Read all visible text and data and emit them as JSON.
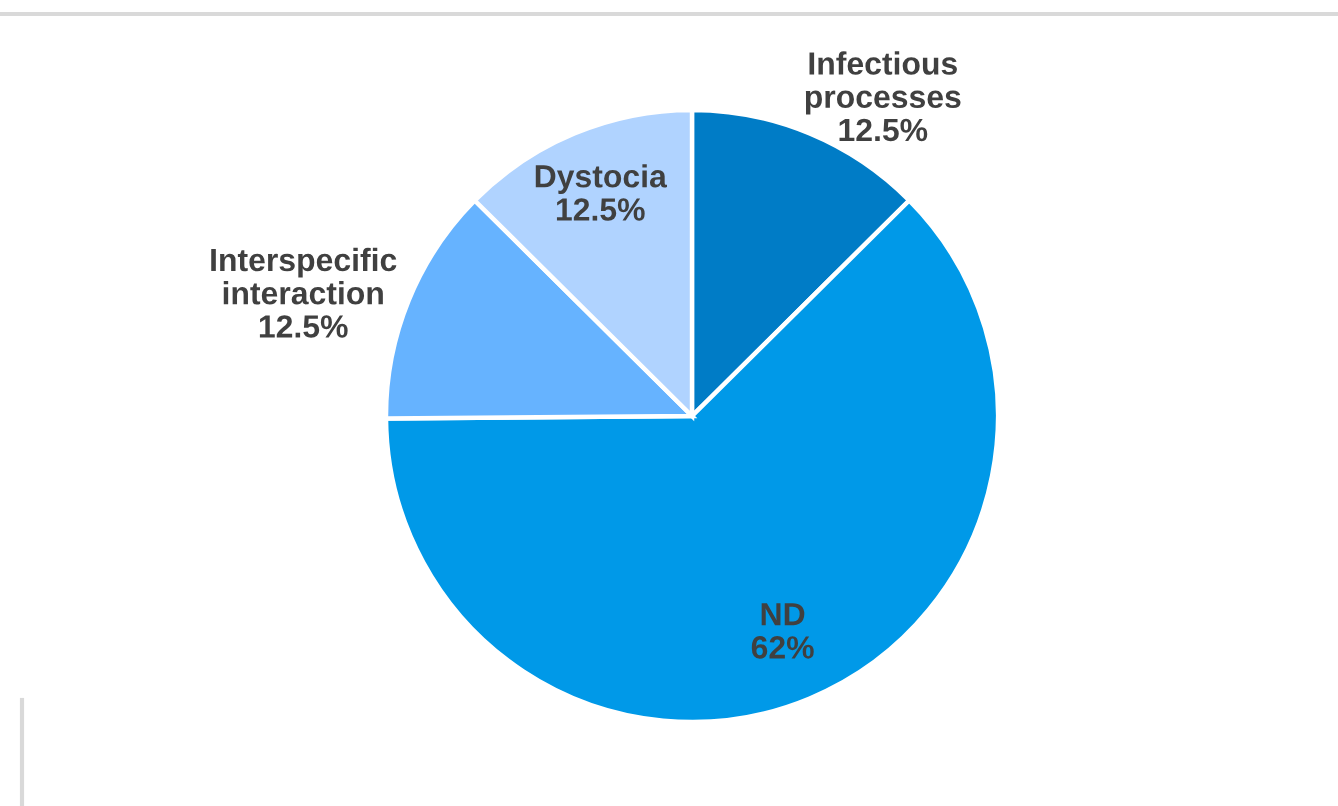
{
  "chart_data": {
    "type": "pie",
    "categories": [
      "Infectious processes",
      "ND",
      "Interspecific interaction",
      "Dystocia"
    ],
    "values": [
      12.5,
      62,
      12.5,
      12.5
    ],
    "value_labels": [
      "12.5%",
      "62%",
      "12.5%",
      "12.5%"
    ],
    "colors": [
      "#007cc6",
      "#0099e8",
      "#66b3ff",
      "#b0d3ff"
    ]
  }
}
